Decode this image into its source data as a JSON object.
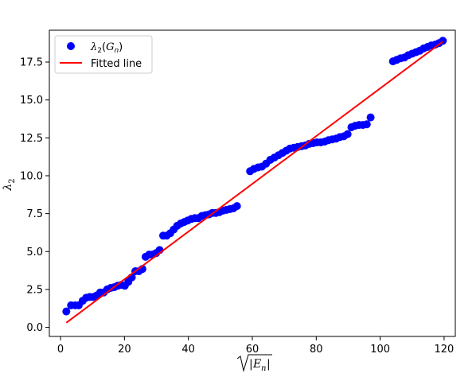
{
  "chart_data": {
    "type": "scatter",
    "xlabel": "√|E_n|",
    "ylabel": "λ₂",
    "xlim": [
      -3.5,
      123.5
    ],
    "ylim": [
      -0.6,
      19.6
    ],
    "xticks": [
      0,
      20,
      40,
      60,
      80,
      100,
      120
    ],
    "yticks": [
      0.0,
      2.5,
      5.0,
      7.5,
      10.0,
      12.5,
      15.0,
      17.5
    ],
    "xtick_labels": [
      "0",
      "20",
      "40",
      "60",
      "80",
      "100",
      "120"
    ],
    "ytick_labels": [
      "0.0",
      "2.5",
      "5.0",
      "7.5",
      "10.0",
      "12.5",
      "15.0",
      "17.5"
    ],
    "legend_position": "top-left",
    "series": [
      {
        "name": "λ2(Gn)",
        "kind": "scatter",
        "color": "#0000ff",
        "x": [
          1.8,
          3.3,
          4.6,
          5.7,
          6.9,
          8.0,
          9.1,
          10.2,
          11.3,
          12.4,
          13.5,
          14.6,
          15.7,
          16.8,
          17.9,
          19.0,
          20.1,
          21.2,
          22.3,
          23.4,
          24.5,
          25.6,
          26.6,
          27.7,
          28.8,
          29.9,
          31.0,
          32.1,
          33.2,
          34.3,
          35.4,
          36.5,
          37.6,
          38.7,
          39.8,
          40.9,
          42.0,
          43.1,
          44.2,
          45.3,
          46.4,
          47.5,
          48.6,
          49.7,
          50.8,
          51.9,
          53.0,
          54.1,
          55.2,
          59.3,
          60.5,
          61.8,
          63.0,
          64.3,
          65.6,
          66.9,
          68.2,
          69.4,
          70.6,
          71.8,
          73.0,
          74.2,
          75.4,
          76.6,
          77.8,
          79.0,
          80.2,
          81.4,
          82.6,
          83.8,
          85.0,
          86.2,
          87.4,
          88.6,
          89.8,
          91.0,
          92.2,
          93.4,
          94.6,
          95.8,
          97.0,
          104.0,
          105.2,
          106.4,
          107.6,
          108.8,
          110.0,
          111.2,
          112.4,
          113.6,
          114.8,
          116.0,
          117.2,
          118.4,
          119.6
        ],
        "y": [
          1.05,
          1.45,
          1.45,
          1.45,
          1.75,
          1.95,
          2.0,
          2.0,
          2.1,
          2.3,
          2.3,
          2.5,
          2.6,
          2.65,
          2.75,
          2.8,
          2.75,
          3.0,
          3.3,
          3.7,
          3.7,
          3.85,
          4.65,
          4.8,
          4.8,
          4.9,
          5.1,
          6.05,
          6.05,
          6.2,
          6.45,
          6.7,
          6.85,
          6.95,
          7.05,
          7.15,
          7.2,
          7.2,
          7.35,
          7.4,
          7.45,
          7.55,
          7.55,
          7.6,
          7.7,
          7.75,
          7.8,
          7.85,
          8.0,
          10.3,
          10.45,
          10.55,
          10.6,
          10.8,
          11.05,
          11.2,
          11.35,
          11.5,
          11.65,
          11.8,
          11.85,
          11.9,
          11.95,
          12.0,
          12.1,
          12.15,
          12.2,
          12.2,
          12.25,
          12.35,
          12.4,
          12.45,
          12.55,
          12.6,
          12.75,
          13.2,
          13.3,
          13.35,
          13.35,
          13.4,
          13.85,
          17.55,
          17.65,
          17.75,
          17.8,
          17.95,
          18.05,
          18.15,
          18.25,
          18.4,
          18.5,
          18.6,
          18.65,
          18.75,
          18.9
        ]
      },
      {
        "name": "Fitted line",
        "kind": "line",
        "color": "#ff0000",
        "x": [
          1.8,
          119.6
        ],
        "y": [
          0.3,
          18.85
        ]
      }
    ]
  }
}
